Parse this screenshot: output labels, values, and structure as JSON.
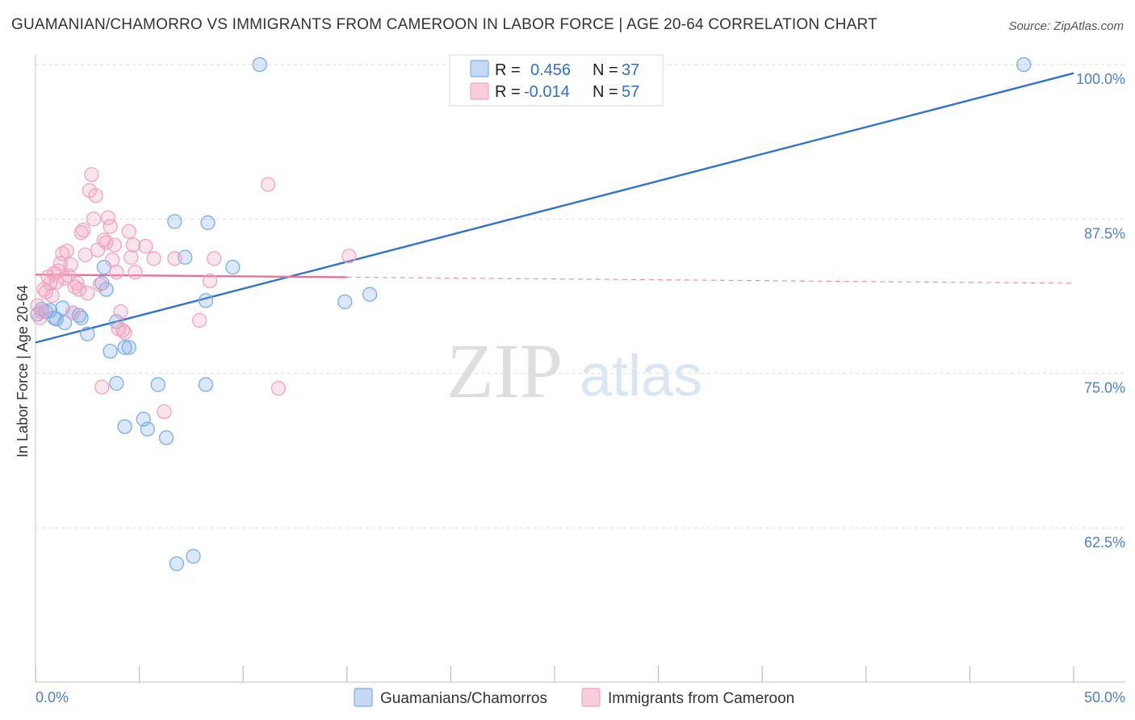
{
  "chart_data": {
    "type": "scatter",
    "title": "GUAMANIAN/CHAMORRO VS IMMIGRANTS FROM CAMEROON IN LABOR FORCE | AGE 20-64 CORRELATION CHART",
    "source": "Source: ZipAtlas.com",
    "xlabel": "",
    "ylabel": "In Labor Force | Age 20-64",
    "xlim": [
      0,
      50
    ],
    "ylim": [
      50,
      102
    ],
    "x_tick_labels": {
      "left": "0.0%",
      "right": "50.0%"
    },
    "y_ticks": [
      {
        "value": 100,
        "label": "100.0%"
      },
      {
        "value": 87.5,
        "label": "87.5%"
      },
      {
        "value": 75,
        "label": "75.0%"
      },
      {
        "value": 62.5,
        "label": "62.5%"
      }
    ],
    "legend": {
      "r_label": "R =",
      "n_label": "N =",
      "entries": [
        {
          "r": "0.456",
          "n": "37"
        },
        {
          "r": "-0.014",
          "n": "57"
        }
      ]
    },
    "watermark": {
      "zip": "ZIP",
      "atlas": "atlas"
    },
    "series": [
      {
        "name": "Guamanians/Chamorros",
        "color": "#7aaee8",
        "line_color": "#2f73cc",
        "trend": {
          "x0": 0,
          "y0": 77.5,
          "x1": 50,
          "y1": 99.3,
          "solid_until": 50
        },
        "points": [
          [
            0.1,
            79.8
          ],
          [
            0.3,
            80.2
          ],
          [
            0.5,
            80.0
          ],
          [
            0.7,
            80.1
          ],
          [
            0.9,
            79.5
          ],
          [
            1.0,
            79.4
          ],
          [
            1.3,
            80.3
          ],
          [
            1.4,
            79.1
          ],
          [
            1.8,
            79.9
          ],
          [
            2.1,
            79.7
          ],
          [
            2.2,
            79.5
          ],
          [
            2.5,
            78.2
          ],
          [
            3.2,
            82.3
          ],
          [
            3.4,
            81.8
          ],
          [
            3.3,
            83.6
          ],
          [
            3.6,
            76.8
          ],
          [
            3.9,
            79.2
          ],
          [
            3.9,
            74.2
          ],
          [
            4.3,
            77.1
          ],
          [
            4.5,
            77.1
          ],
          [
            4.3,
            70.7
          ],
          [
            5.2,
            71.3
          ],
          [
            5.4,
            70.5
          ],
          [
            5.9,
            74.1
          ],
          [
            6.3,
            69.8
          ],
          [
            6.7,
            87.3
          ],
          [
            7.2,
            84.4
          ],
          [
            8.2,
            74.1
          ],
          [
            8.2,
            80.9
          ],
          [
            9.5,
            83.6
          ],
          [
            6.8,
            59.6
          ],
          [
            7.6,
            60.2
          ],
          [
            8.3,
            87.2
          ],
          [
            10.8,
            100.0
          ],
          [
            14.9,
            80.8
          ],
          [
            16.1,
            81.4
          ],
          [
            47.6,
            100.0
          ]
        ]
      },
      {
        "name": "Immigrants from Cameroon",
        "color": "#f2a3be",
        "line_color": "#e8739a",
        "trend": {
          "x0": 0,
          "y0": 83.0,
          "x1": 50,
          "y1": 82.3,
          "solid_until": 15
        },
        "points": [
          [
            0.1,
            80.5
          ],
          [
            0.2,
            79.5
          ],
          [
            0.3,
            80.0
          ],
          [
            0.4,
            81.8
          ],
          [
            0.5,
            81.6
          ],
          [
            0.6,
            82.8
          ],
          [
            0.7,
            82.3
          ],
          [
            0.8,
            81.3
          ],
          [
            0.9,
            83.1
          ],
          [
            1.0,
            82.4
          ],
          [
            1.1,
            83.3
          ],
          [
            1.2,
            83.9
          ],
          [
            1.3,
            84.7
          ],
          [
            1.4,
            82.7
          ],
          [
            1.5,
            84.9
          ],
          [
            1.6,
            82.9
          ],
          [
            1.7,
            83.8
          ],
          [
            1.8,
            79.9
          ],
          [
            1.9,
            82.0
          ],
          [
            2.0,
            82.3
          ],
          [
            2.1,
            81.8
          ],
          [
            2.2,
            86.4
          ],
          [
            2.3,
            86.6
          ],
          [
            2.4,
            84.6
          ],
          [
            2.5,
            81.5
          ],
          [
            2.6,
            89.8
          ],
          [
            2.7,
            91.1
          ],
          [
            2.8,
            87.5
          ],
          [
            2.9,
            89.4
          ],
          [
            3.0,
            85.0
          ],
          [
            3.1,
            82.2
          ],
          [
            3.2,
            73.9
          ],
          [
            3.3,
            85.8
          ],
          [
            3.4,
            85.6
          ],
          [
            3.5,
            87.6
          ],
          [
            3.6,
            86.9
          ],
          [
            3.7,
            84.2
          ],
          [
            3.8,
            85.4
          ],
          [
            3.9,
            83.2
          ],
          [
            4.0,
            78.6
          ],
          [
            4.1,
            80.0
          ],
          [
            4.2,
            78.5
          ],
          [
            4.3,
            78.3
          ],
          [
            4.5,
            86.5
          ],
          [
            4.6,
            84.4
          ],
          [
            4.7,
            85.4
          ],
          [
            4.8,
            83.2
          ],
          [
            5.3,
            85.3
          ],
          [
            5.7,
            84.3
          ],
          [
            6.2,
            71.9
          ],
          [
            6.7,
            84.3
          ],
          [
            7.9,
            79.3
          ],
          [
            8.4,
            82.5
          ],
          [
            8.6,
            84.3
          ],
          [
            11.2,
            90.3
          ],
          [
            11.7,
            73.8
          ],
          [
            15.1,
            84.5
          ]
        ]
      }
    ]
  }
}
